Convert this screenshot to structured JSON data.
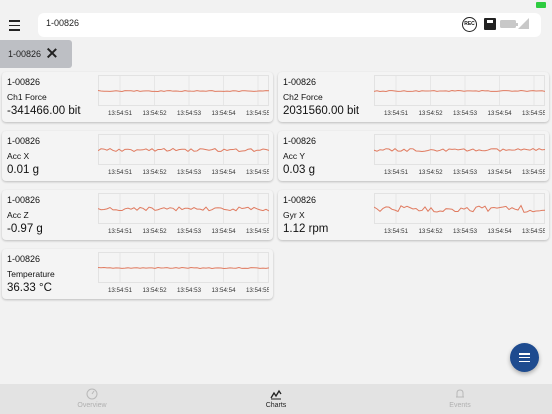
{
  "search": {
    "value": "1-00826"
  },
  "chip": {
    "label": "1-00826"
  },
  "cards": [
    {
      "device": "1-00826",
      "label": "Ch1 Force",
      "value": "-341466.00 bit"
    },
    {
      "device": "1-00826",
      "label": "Ch2 Force",
      "value": "2031560.00 bit"
    },
    {
      "device": "1-00826",
      "label": "Acc X",
      "value": "0.01 g"
    },
    {
      "device": "1-00826",
      "label": "Acc Y",
      "value": "0.03 g"
    },
    {
      "device": "1-00826",
      "label": "Acc Z",
      "value": "-0.97 g"
    },
    {
      "device": "1-00826",
      "label": "Gyr X",
      "value": "1.12 rpm"
    },
    {
      "device": "1-00826",
      "label": "Temperature",
      "value": "36.33 °C"
    }
  ],
  "chart_time_ticks": [
    "13:54:51",
    "13:54:52",
    "13:54:53",
    "13:54:54",
    "13:54:55"
  ],
  "line_color": "#e07a5f",
  "nav": {
    "overview": "Overview",
    "charts": "Charts",
    "events": "Events"
  },
  "colors": {
    "fab": "#1e4b8f",
    "active_nav": "#222222",
    "inactive_nav": "#b0b0b0"
  }
}
